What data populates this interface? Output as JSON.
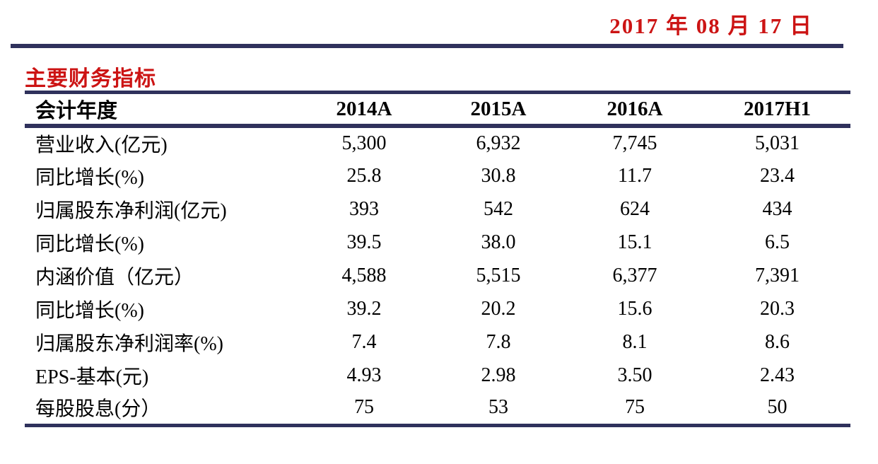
{
  "header": {
    "date": "2017 年 08 月 17 日"
  },
  "section": {
    "title": "主要财务指标"
  },
  "colors": {
    "accent_red": "#cc1414",
    "rule_navy": "#2f315c",
    "background": "#ffffff",
    "text": "#000000"
  },
  "table": {
    "columns": [
      "会计年度",
      "2014A",
      "2015A",
      "2016A",
      "2017H1"
    ],
    "rows": [
      {
        "label": "营业收入(亿元)",
        "values": [
          "5,300",
          "6,932",
          "7,745",
          "5,031"
        ]
      },
      {
        "label": "同比增长(%)",
        "values": [
          "25.8",
          "30.8",
          "11.7",
          "23.4"
        ]
      },
      {
        "label": "归属股东净利润(亿元)",
        "values": [
          "393",
          "542",
          "624",
          "434"
        ]
      },
      {
        "label": "同比增长(%)",
        "values": [
          "39.5",
          "38.0",
          "15.1",
          "6.5"
        ]
      },
      {
        "label": "内涵价值（亿元）",
        "values": [
          "4,588",
          "5,515",
          "6,377",
          "7,391"
        ]
      },
      {
        "label": "同比增长(%)",
        "values": [
          "39.2",
          "20.2",
          "15.6",
          "20.3"
        ]
      },
      {
        "label": "归属股东净利润率(%)",
        "values": [
          "7.4",
          "7.8",
          "8.1",
          "8.6"
        ]
      },
      {
        "label": "EPS-基本(元)",
        "values": [
          "4.93",
          "2.98",
          "3.50",
          "2.43"
        ]
      },
      {
        "label": "每股股息(分）",
        "values": [
          "75",
          "53",
          "75",
          "50"
        ]
      }
    ]
  }
}
